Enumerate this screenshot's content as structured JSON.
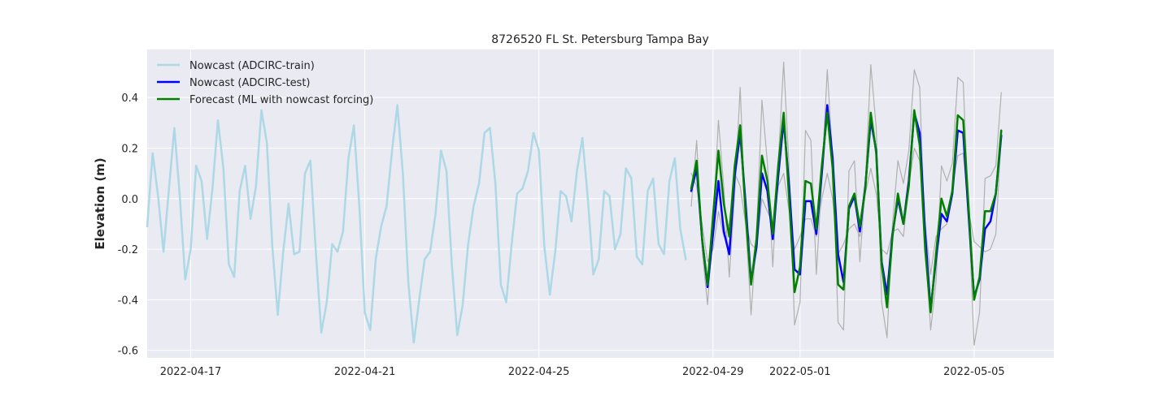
{
  "chart_data": {
    "type": "line",
    "title": "8726520 FL St. Petersburg Tampa Bay",
    "xlabel": "",
    "ylabel": "Elevation (m)",
    "x_unit": "date",
    "xlim": [
      "2022-04-16T00:00",
      "2022-05-06T20:00"
    ],
    "ylim": [
      -0.63,
      0.59
    ],
    "x_ticks": [
      "2022-04-17",
      "2022-04-21",
      "2022-04-25",
      "2022-04-29",
      "2022-05-01",
      "2022-05-05"
    ],
    "y_ticks": [
      -0.6,
      -0.4,
      -0.2,
      0.0,
      0.2,
      0.4
    ],
    "grid": true,
    "legend_position": "top-left",
    "series": [
      {
        "name": "Nowcast (ADCIRC-train)",
        "color": "#add8e6",
        "x_start": "2022-04-16T00:00",
        "step_hours": 3,
        "values": [
          -0.11,
          0.18,
          0.01,
          -0.21,
          0.04,
          0.28,
          0.01,
          -0.32,
          -0.2,
          0.13,
          0.07,
          -0.16,
          0.04,
          0.31,
          0.12,
          -0.26,
          -0.31,
          0.03,
          0.13,
          -0.08,
          0.05,
          0.35,
          0.22,
          -0.19,
          -0.46,
          -0.21,
          -0.02,
          -0.22,
          -0.21,
          0.1,
          0.15,
          -0.21,
          -0.53,
          -0.41,
          -0.18,
          -0.21,
          -0.13,
          0.16,
          0.29,
          -0.03,
          -0.45,
          -0.52,
          -0.24,
          -0.11,
          -0.03,
          0.19,
          0.37,
          0.1,
          -0.33,
          -0.57,
          -0.4,
          -0.24,
          -0.21,
          -0.06,
          0.19,
          0.11,
          -0.26,
          -0.54,
          -0.42,
          -0.18,
          -0.03,
          0.06,
          0.26,
          0.28,
          0.06,
          -0.34,
          -0.41,
          -0.18,
          0.02,
          0.04,
          0.11,
          0.26,
          0.19,
          -0.19,
          -0.38,
          -0.21,
          0.03,
          0.01,
          -0.09,
          0.11,
          0.24,
          0.0,
          -0.3,
          -0.24,
          0.03,
          0.01,
          -0.2,
          -0.14,
          0.12,
          0.08,
          -0.23,
          -0.26,
          0.03,
          0.08,
          -0.18,
          -0.22,
          0.07,
          0.16,
          -0.12,
          -0.24
        ]
      },
      {
        "name": "Nowcast (ADCIRC-test)",
        "color": "#0000ff",
        "x_start": "2022-04-28T12:00",
        "step_hours": 3,
        "values": [
          0.03,
          0.12,
          -0.16,
          -0.35,
          -0.14,
          0.07,
          -0.13,
          -0.22,
          0.09,
          0.26,
          -0.02,
          -0.33,
          -0.19,
          0.1,
          0.03,
          -0.16,
          0.09,
          0.31,
          0.05,
          -0.28,
          -0.3,
          -0.01,
          -0.01,
          -0.14,
          0.1,
          0.37,
          0.16,
          -0.22,
          -0.33,
          -0.04,
          0.01,
          -0.13,
          0.05,
          0.31,
          0.19,
          -0.25,
          -0.38,
          -0.14,
          0.0,
          -0.1,
          0.07,
          0.34,
          0.26,
          -0.14,
          -0.44,
          -0.24,
          -0.06,
          -0.09,
          0.02,
          0.27,
          0.26,
          -0.07,
          -0.39,
          -0.32,
          -0.12,
          -0.09,
          0.02,
          0.25
        ]
      },
      {
        "name": "Forecast (ML with nowcast forcing)",
        "color": "#008000",
        "x_start": "2022-04-28T12:00",
        "step_hours": 3,
        "values": [
          0.04,
          0.15,
          -0.16,
          -0.34,
          -0.07,
          0.19,
          -0.02,
          -0.15,
          0.13,
          0.29,
          -0.06,
          -0.34,
          -0.16,
          0.17,
          0.07,
          -0.14,
          0.13,
          0.34,
          0.0,
          -0.37,
          -0.27,
          0.07,
          0.06,
          -0.12,
          0.13,
          0.34,
          0.12,
          -0.34,
          -0.36,
          -0.03,
          0.02,
          -0.11,
          0.04,
          0.34,
          0.18,
          -0.26,
          -0.43,
          -0.15,
          0.02,
          -0.1,
          0.05,
          0.35,
          0.21,
          -0.2,
          -0.45,
          -0.22,
          0.0,
          -0.07,
          0.03,
          0.33,
          0.31,
          -0.04,
          -0.4,
          -0.31,
          -0.05,
          -0.05,
          0.02,
          0.27
        ]
      },
      {
        "name": "",
        "color": "#b0b0b0",
        "x_start": "2022-04-28T12:00",
        "step_hours": 3,
        "values": [
          -0.03,
          0.23,
          -0.2,
          -0.42,
          -0.1,
          0.31,
          0.04,
          -0.31,
          0.02,
          0.44,
          -0.09,
          -0.46,
          -0.14,
          0.39,
          0.14,
          -0.27,
          0.14,
          0.54,
          0.12,
          -0.5,
          -0.41,
          0.27,
          0.23,
          -0.3,
          0.08,
          0.51,
          0.16,
          -0.49,
          -0.52,
          0.11,
          0.15,
          -0.25,
          0.06,
          0.53,
          0.28,
          -0.41,
          -0.55,
          -0.1,
          0.15,
          0.06,
          0.19,
          0.51,
          0.44,
          -0.19,
          -0.52,
          -0.33,
          0.13,
          0.07,
          0.14,
          0.48,
          0.46,
          -0.06,
          -0.58,
          -0.45,
          0.08,
          0.09,
          0.13,
          0.42
        ]
      },
      {
        "name": "",
        "color": "#b0b0b0",
        "x_start": "2022-04-28T12:00",
        "step_hours": 3,
        "values": [
          0.1,
          0.05,
          -0.1,
          -0.25,
          -0.2,
          -0.05,
          -0.15,
          -0.1,
          0.1,
          0.05,
          -0.1,
          -0.18,
          -0.2,
          0.0,
          -0.05,
          -0.1,
          0.05,
          0.1,
          -0.05,
          -0.2,
          -0.15,
          -0.08,
          -0.08,
          -0.15,
          0.0,
          0.1,
          0.0,
          -0.22,
          -0.18,
          -0.12,
          -0.1,
          -0.15,
          0.02,
          0.12,
          0.02,
          -0.2,
          -0.22,
          -0.13,
          -0.12,
          -0.15,
          0.05,
          0.2,
          0.15,
          -0.1,
          -0.3,
          -0.15,
          -0.12,
          -0.1,
          0.05,
          0.17,
          0.18,
          -0.05,
          -0.17,
          -0.19,
          -0.21,
          -0.2,
          -0.14,
          0.25
        ]
      }
    ]
  }
}
